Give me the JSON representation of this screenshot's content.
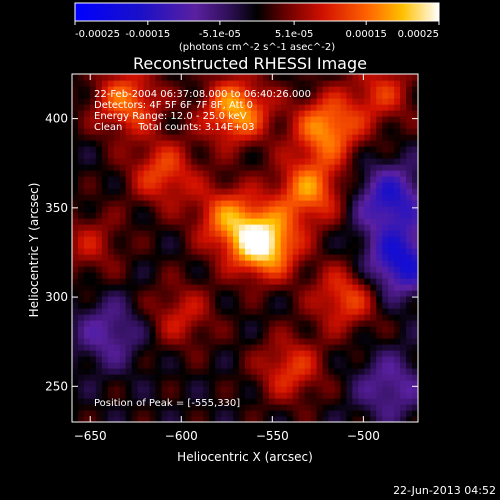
{
  "chart_data": {
    "type": "heatmap",
    "title": "Reconstructed RHESSI Image",
    "xlabel": "Heliocentric X (arcsec)",
    "ylabel": "Heliocentric Y (arcsec)",
    "xlim": [
      -660,
      -470
    ],
    "ylim": [
      230,
      425
    ],
    "x_ticks": [
      -650,
      -600,
      -550,
      -500
    ],
    "y_ticks": [
      250,
      300,
      350,
      400
    ],
    "colorbar": {
      "vmin": -0.00025,
      "vmax": 0.00025,
      "tick_values": [
        -0.00025,
        -0.00015,
        -5.1e-05,
        5.1e-05,
        0.00015,
        0.00025
      ],
      "tick_labels": [
        "-0.00025",
        "-0.00015",
        "-5.1e-05",
        "5.1e-05",
        "0.00015",
        "0.00025"
      ],
      "unit_label": "(photons cm^-2 s^-1 asec^-2)"
    },
    "annotations": {
      "time": "22-Feb-2004 06:37:08.000 to 06:40:26.000",
      "detectors": "Detectors: 4F 5F 6F 7F 8F, Att 0",
      "energy": "Energy Range: 12.0 - 25.0 keV",
      "method": "Clean     Total counts: 3.14E+03",
      "peak": "Position of Peak = [-555,330]"
    },
    "peak": {
      "x": -555,
      "y": 330
    },
    "sources": [
      {
        "x": -555,
        "y": 330,
        "amp": 1.0
      },
      {
        "x": -575,
        "y": 345,
        "amp": 0.55
      },
      {
        "x": -530,
        "y": 360,
        "amp": 0.65
      },
      {
        "x": -520,
        "y": 395,
        "amp": 0.7
      },
      {
        "x": -570,
        "y": 405,
        "amp": 0.75
      },
      {
        "x": -610,
        "y": 370,
        "amp": 0.5
      },
      {
        "x": -630,
        "y": 410,
        "amp": 0.6
      },
      {
        "x": -510,
        "y": 300,
        "amp": 0.5
      },
      {
        "x": -600,
        "y": 290,
        "amp": 0.35
      },
      {
        "x": -540,
        "y": 260,
        "amp": 0.45
      },
      {
        "x": -490,
        "y": 415,
        "amp": 0.4
      },
      {
        "x": -650,
        "y": 330,
        "amp": 0.3
      },
      {
        "x": -480,
        "y": 320,
        "amp": -0.7
      },
      {
        "x": -485,
        "y": 355,
        "amp": -0.6
      },
      {
        "x": -640,
        "y": 280,
        "amp": -0.35
      },
      {
        "x": -485,
        "y": 250,
        "amp": -0.35
      }
    ]
  },
  "footer": {
    "timestamp": "22-Jun-2013 04:52"
  }
}
